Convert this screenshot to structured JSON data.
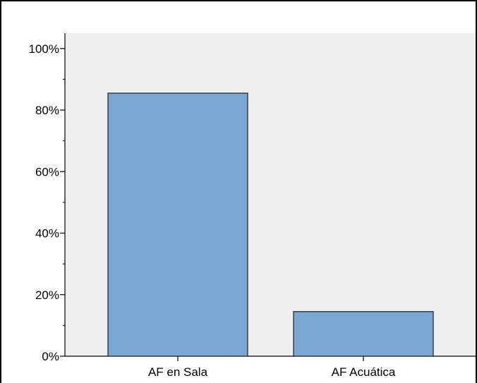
{
  "chart_data": {
    "type": "bar",
    "categories": [
      "AF en Sala",
      "AF Acuática"
    ],
    "values": [
      85.5,
      14.5
    ],
    "ylim": [
      0,
      105
    ],
    "y_major_ticks": [
      0,
      20,
      40,
      60,
      80,
      100
    ],
    "y_minor_step": 10,
    "y_tick_format": "percent",
    "grid": false,
    "legend": "none",
    "colors": {
      "plot_background": "#f0f0f0",
      "bar_fill": "#7ba7d5",
      "bar_stroke": "#1f1f1f"
    }
  }
}
